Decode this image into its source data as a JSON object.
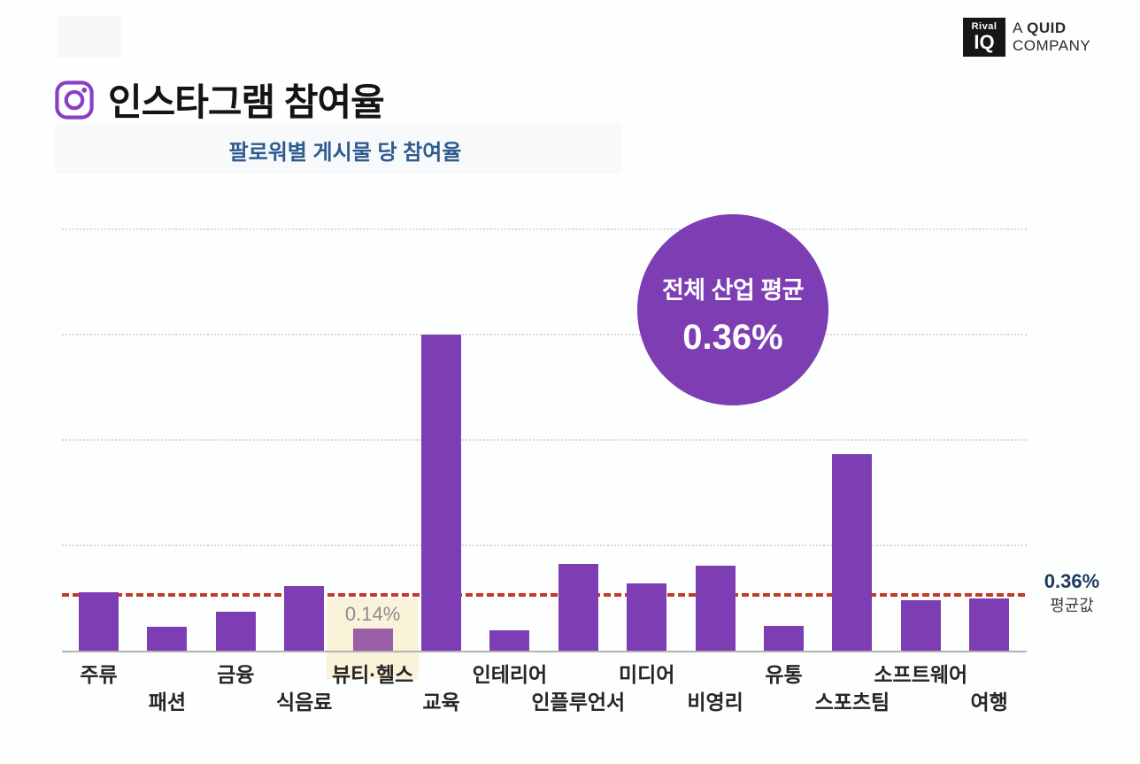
{
  "header": {
    "title": "인스타그램 참여율",
    "subtitle": "팔로워별 게시물 당 참여율"
  },
  "logo": {
    "badge_line1": "Rival",
    "badge_line2": "IQ",
    "tag_a": "A",
    "tag_quid": "QUID",
    "tag_line2": "COMPANY"
  },
  "badge": {
    "label": "전체 산업 평균",
    "value": "0.36%"
  },
  "average_annotation": {
    "value_label": "0.36%",
    "caption": "평균값"
  },
  "chart_data": {
    "type": "bar",
    "title": "인스타그램 참여율",
    "subtitle": "팔로워별 게시물 당 참여율",
    "unit": "% engagement rate per post by follower",
    "categories": [
      "주류",
      "패션",
      "금융",
      "식음료",
      "뷰티·헬스",
      "교육",
      "인테리어",
      "인플루언서",
      "미디어",
      "비영리",
      "유통",
      "스포츠팀",
      "소프트웨어",
      "여행"
    ],
    "values": [
      0.37,
      0.15,
      0.25,
      0.41,
      0.14,
      2.01,
      0.13,
      0.55,
      0.43,
      0.54,
      0.16,
      1.25,
      0.32,
      0.33
    ],
    "average_line": {
      "value": 0.36,
      "label": "0.36%",
      "caption": "평균값",
      "color": "#c43a25",
      "style": "dashed"
    },
    "annotation_circle": {
      "label": "전체 산업 평균",
      "value": "0.36%"
    },
    "highlight": {
      "index": 4,
      "category": "뷰티·헬스",
      "value_label": "0.14%",
      "bar_color": "#9b5fa9",
      "background": "#faf3da"
    },
    "bar_color": "#7d3eb3",
    "ylim": [
      0,
      2.8
    ],
    "grid": "horizontal-dotted",
    "xlabel": "",
    "ylabel": "",
    "legend": "none",
    "label_layout": "staggered-two-rows"
  }
}
